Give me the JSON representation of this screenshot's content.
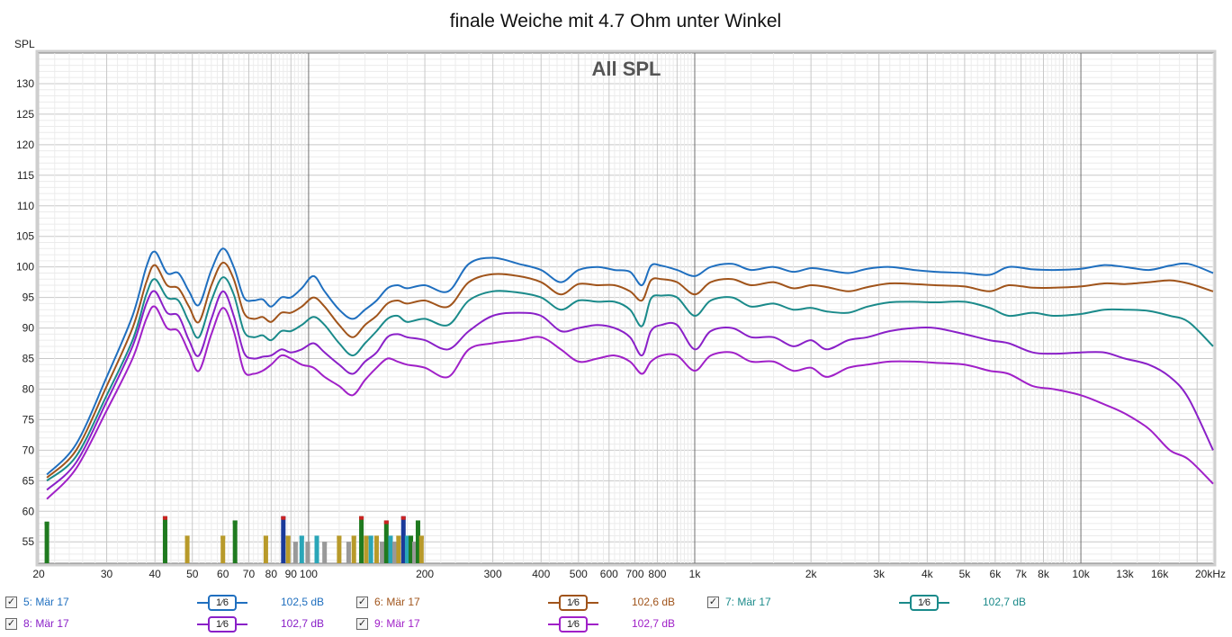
{
  "chart_data": {
    "type": "line",
    "title": "finale Weiche mit 4.7 Ohm unter Winkel",
    "overlay": "All SPL",
    "ylabel": "SPL",
    "x_scale": "log",
    "xlim": [
      20,
      22000
    ],
    "ylim": [
      51.5,
      135
    ],
    "grid": true,
    "y_ticks": [
      55,
      60,
      65,
      70,
      75,
      80,
      85,
      90,
      95,
      100,
      105,
      110,
      115,
      120,
      125,
      130
    ],
    "x_ticks": [
      {
        "v": 20,
        "t": "20"
      },
      {
        "v": 30,
        "t": "30"
      },
      {
        "v": 40,
        "t": "40"
      },
      {
        "v": 50,
        "t": "50"
      },
      {
        "v": 60,
        "t": "60"
      },
      {
        "v": 70,
        "t": "70"
      },
      {
        "v": 80,
        "t": "80"
      },
      {
        "v": 90,
        "t": "90"
      },
      {
        "v": 100,
        "t": "100"
      },
      {
        "v": 200,
        "t": "200"
      },
      {
        "v": 300,
        "t": "300"
      },
      {
        "v": 400,
        "t": "400"
      },
      {
        "v": 500,
        "t": "500"
      },
      {
        "v": 600,
        "t": "600"
      },
      {
        "v": 700,
        "t": "700"
      },
      {
        "v": 800,
        "t": "800"
      },
      {
        "v": 1000,
        "t": "1k"
      },
      {
        "v": 2000,
        "t": "2k"
      },
      {
        "v": 3000,
        "t": "3k"
      },
      {
        "v": 4000,
        "t": "4k"
      },
      {
        "v": 5000,
        "t": "5k"
      },
      {
        "v": 6000,
        "t": "6k"
      },
      {
        "v": 7000,
        "t": "7k"
      },
      {
        "v": 8000,
        "t": "8k"
      },
      {
        "v": 10000,
        "t": "10k"
      },
      {
        "v": 13000,
        "t": "13k"
      },
      {
        "v": 16000,
        "t": "16k"
      },
      {
        "v": 20000,
        "t": "20kHz"
      }
    ],
    "x": [
      21,
      25,
      30,
      35,
      38,
      40,
      43,
      46,
      49,
      52,
      56,
      60,
      64,
      68,
      72,
      76,
      80,
      85,
      90,
      96,
      103,
      110,
      120,
      130,
      140,
      150,
      160,
      170,
      180,
      200,
      230,
      260,
      300,
      350,
      400,
      450,
      500,
      560,
      620,
      680,
      730,
      770,
      820,
      900,
      1000,
      1100,
      1250,
      1400,
      1600,
      1800,
      2000,
      2200,
      2500,
      2800,
      3200,
      3700,
      4200,
      5000,
      5800,
      6500,
      7500,
      8500,
      10000,
      11500,
      13000,
      15000,
      17000,
      19000,
      22000
    ],
    "series": [
      {
        "name": "5: Mär 17",
        "color": "#1f6fbf",
        "values": [
          66,
          71,
          82,
          92,
          100,
          102.5,
          99,
          99,
          96,
          93.8,
          99.5,
          103,
          100,
          95,
          94.5,
          94.7,
          93.5,
          95,
          95,
          96.5,
          98.5,
          96,
          93,
          91.5,
          93,
          94.5,
          96.5,
          97,
          96.5,
          97,
          96,
          100.5,
          101.5,
          100.5,
          99.5,
          97.5,
          99.5,
          100,
          99.5,
          99.2,
          97,
          100.2,
          100.2,
          99.5,
          98.5,
          100,
          100.5,
          99.5,
          100,
          99.2,
          99.8,
          99.5,
          99,
          99.7,
          100,
          99.5,
          99.2,
          99,
          98.7,
          100,
          99.6,
          99.5,
          99.7,
          100.3,
          100,
          99.5,
          100.2,
          100.5,
          99
        ]
      },
      {
        "name": "6: Mär 17",
        "color": "#a0541b",
        "values": [
          65.5,
          70,
          80.5,
          90,
          97.5,
          100.3,
          97,
          96.5,
          93.5,
          91,
          97,
          100.7,
          98,
          92.5,
          91.5,
          91.8,
          91,
          92.5,
          92.5,
          93.5,
          95,
          93.5,
          90.5,
          88.5,
          90.5,
          92,
          94,
          94.5,
          94,
          94.5,
          93.5,
          97.5,
          98.8,
          98.5,
          97.5,
          95.5,
          97.2,
          97,
          97,
          96,
          94.5,
          97.8,
          98,
          97.5,
          95.5,
          97.5,
          98,
          97,
          97.5,
          96.5,
          97,
          96.7,
          96,
          96.7,
          97.3,
          97.2,
          97,
          96.8,
          96,
          97,
          96.6,
          96.6,
          96.8,
          97.3,
          97.2,
          97.5,
          97.8,
          97.3,
          96
        ]
      },
      {
        "name": "7: Mär 17",
        "color": "#1a8a8a",
        "values": [
          65,
          69,
          79,
          88,
          95.5,
          98,
          95,
          94.5,
          91,
          88.5,
          94.5,
          98.3,
          95.5,
          89.5,
          88.5,
          88.8,
          88,
          89.5,
          89.5,
          90.5,
          91.8,
          90.5,
          87.5,
          85.5,
          87.5,
          89.5,
          91.5,
          92,
          91,
          91.5,
          90.5,
          94.5,
          96,
          95.8,
          95,
          93,
          94.5,
          94.3,
          94.3,
          93,
          90.3,
          94.8,
          95.3,
          95,
          92,
          94.5,
          95,
          93.5,
          94,
          93,
          93.3,
          92.7,
          92.5,
          93.5,
          94.2,
          94.3,
          94.2,
          94.3,
          93.3,
          92,
          92.5,
          92,
          92.3,
          93,
          93,
          92.8,
          92,
          91,
          87
        ]
      },
      {
        "name": "8: Mär 17",
        "color": "#8a20c8",
        "values": [
          63.5,
          68,
          78,
          87,
          94,
          96,
          92.5,
          92,
          88,
          85.5,
          91.5,
          96,
          92,
          86,
          85,
          85.3,
          85.5,
          86.5,
          86,
          86.5,
          87.5,
          86,
          84,
          82.5,
          84.5,
          86,
          88.5,
          89,
          88.5,
          88,
          86.5,
          89.5,
          92,
          92.5,
          92,
          89.5,
          90,
          90.5,
          90,
          88.5,
          85.5,
          89.5,
          90.5,
          90.5,
          86.5,
          89.5,
          90,
          88.5,
          88.5,
          87,
          88,
          86.5,
          88,
          88.5,
          89.5,
          90,
          90,
          89,
          88,
          87.5,
          86,
          85.8,
          86,
          86,
          85,
          84,
          82,
          78.5,
          70
        ]
      },
      {
        "name": "9: Mär 17",
        "color": "#a020c8",
        "values": [
          62,
          67,
          76.5,
          85,
          91.5,
          93.5,
          90,
          89.5,
          86,
          83,
          89,
          93.3,
          89.5,
          83,
          82.5,
          83,
          84,
          85.5,
          85,
          84,
          83.5,
          82,
          80.5,
          79,
          81.5,
          83.5,
          85,
          84.5,
          84,
          83.5,
          82,
          86.5,
          87.5,
          88,
          88.5,
          86.5,
          84.5,
          85,
          85.5,
          84.5,
          82.5,
          84.5,
          85.5,
          85.5,
          83,
          85.5,
          86,
          84.5,
          84.5,
          83,
          83.5,
          82,
          83.5,
          84,
          84.5,
          84.5,
          84.3,
          84,
          83,
          82.5,
          80.5,
          80,
          79,
          77.5,
          76,
          73.5,
          70,
          68.5,
          64.5
        ]
      }
    ],
    "bars": [
      {
        "f": 21,
        "v": 58.3,
        "c": "#1f7a1f",
        "top": "#1f7a1f"
      },
      {
        "f": 42.5,
        "v": 59.2,
        "c": "#1f7a1f",
        "top": "#cc2222"
      },
      {
        "f": 48.5,
        "v": 56,
        "c": "#b89a2a",
        "top": "#b89a2a"
      },
      {
        "f": 60,
        "v": 56,
        "c": "#b89a2a",
        "top": "#b89a2a"
      },
      {
        "f": 64.5,
        "v": 58.5,
        "c": "#1f7a1f",
        "top": "#1f7a1f"
      },
      {
        "f": 77.5,
        "v": 56,
        "c": "#b89a2a",
        "top": "#b89a2a"
      },
      {
        "f": 86,
        "v": 59.2,
        "c": "#1a3a9a",
        "top": "#cc2222"
      },
      {
        "f": 88.5,
        "v": 56,
        "c": "#b89a2a",
        "top": "#b89a2a"
      },
      {
        "f": 92.5,
        "v": 55,
        "c": "#999999",
        "top": "#999999"
      },
      {
        "f": 96,
        "v": 56,
        "c": "#2aa6b8",
        "top": "#2aa6b8"
      },
      {
        "f": 99.5,
        "v": 55,
        "c": "#999999",
        "top": "#999999"
      },
      {
        "f": 105,
        "v": 56,
        "c": "#2aa6b8",
        "top": "#2aa6b8"
      },
      {
        "f": 110,
        "v": 55,
        "c": "#999999",
        "top": "#999999"
      },
      {
        "f": 120,
        "v": 56,
        "c": "#b89a2a",
        "top": "#b89a2a"
      },
      {
        "f": 127,
        "v": 55,
        "c": "#999999",
        "top": "#999999"
      },
      {
        "f": 131,
        "v": 56,
        "c": "#b89a2a",
        "top": "#b89a2a"
      },
      {
        "f": 137,
        "v": 59.2,
        "c": "#1f7a1f",
        "top": "#cc2222"
      },
      {
        "f": 141,
        "v": 56,
        "c": "#b89a2a",
        "top": "#b89a2a"
      },
      {
        "f": 145,
        "v": 56,
        "c": "#2aa6b8",
        "top": "#2aa6b8"
      },
      {
        "f": 150,
        "v": 56,
        "c": "#b89a2a",
        "top": "#b89a2a"
      },
      {
        "f": 155,
        "v": 55,
        "c": "#999999",
        "top": "#999999"
      },
      {
        "f": 159,
        "v": 58.5,
        "c": "#1f7a1f",
        "top": "#cc2222"
      },
      {
        "f": 163,
        "v": 56,
        "c": "#2aa6b8",
        "top": "#2aa6b8"
      },
      {
        "f": 167,
        "v": 55,
        "c": "#999999",
        "top": "#999999"
      },
      {
        "f": 171,
        "v": 56,
        "c": "#b89a2a",
        "top": "#b89a2a"
      },
      {
        "f": 176,
        "v": 59.2,
        "c": "#1a3a9a",
        "top": "#cc2222"
      },
      {
        "f": 180,
        "v": 56,
        "c": "#2aa6b8",
        "top": "#2aa6b8"
      },
      {
        "f": 184,
        "v": 56,
        "c": "#1f7a1f",
        "top": "#1f7a1f"
      },
      {
        "f": 188,
        "v": 55,
        "c": "#999999",
        "top": "#999999"
      },
      {
        "f": 192,
        "v": 58.5,
        "c": "#1f7a1f",
        "top": "#1f7a1f"
      },
      {
        "f": 196,
        "v": 56,
        "c": "#b89a2a",
        "top": "#b89a2a"
      }
    ]
  },
  "legend": [
    {
      "checked": "✓",
      "name": "5: Mär 17",
      "smoothing": "1⁄6",
      "level": "102,5 dB",
      "color": "#1f6fbf"
    },
    {
      "checked": "✓",
      "name": "6: Mär 17",
      "smoothing": "1⁄6",
      "level": "102,6 dB",
      "color": "#a0541b"
    },
    {
      "checked": "✓",
      "name": "7: Mär 17",
      "smoothing": "1⁄6",
      "level": "102,7 dB",
      "color": "#1a8a8a"
    },
    {
      "checked": "✓",
      "name": "8: Mär 17",
      "smoothing": "1⁄6",
      "level": "102,7 dB",
      "color": "#8a20c8"
    },
    {
      "checked": "✓",
      "name": "9: Mär 17",
      "smoothing": "1⁄6",
      "level": "102,7 dB",
      "color": "#a020c8"
    }
  ]
}
